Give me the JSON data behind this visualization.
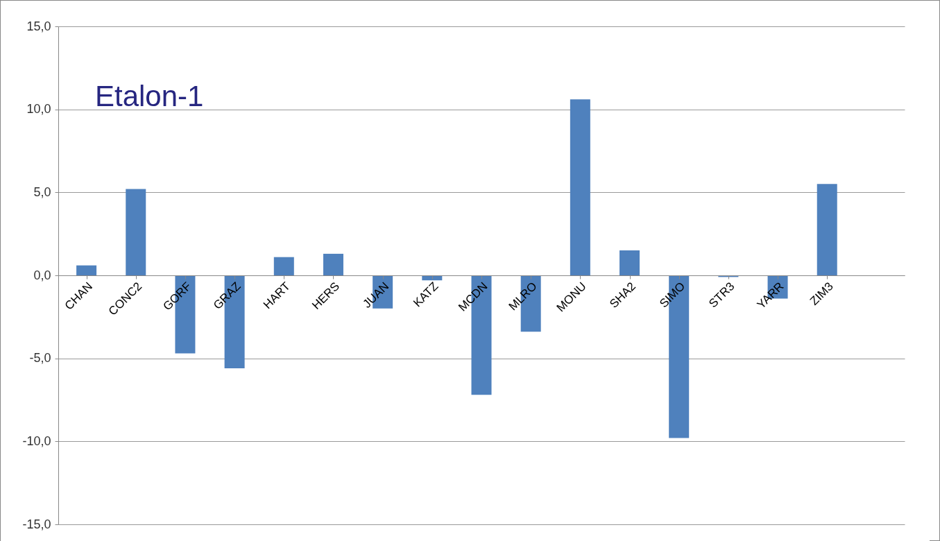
{
  "chart_data": {
    "type": "bar",
    "title": "Etalon-1",
    "categories": [
      "CHAN",
      "CONC2",
      "GORF",
      "GRAZ",
      "HART",
      "HERS",
      "JUAN",
      "KATZ",
      "MCDN",
      "MLRO",
      "MONU",
      "SHA2",
      "SIMO",
      "STR3",
      "YARR",
      "ZIM3"
    ],
    "values": [
      0.6,
      5.2,
      -4.7,
      -5.6,
      1.1,
      1.3,
      -2.0,
      -0.3,
      -7.2,
      -3.4,
      10.6,
      1.5,
      -9.8,
      -0.1,
      -1.4,
      5.5
    ],
    "color": "#4f81bd",
    "ylim": [
      -15,
      15
    ],
    "yticks": [
      {
        "value": -15,
        "label": "-15,0"
      },
      {
        "value": -10,
        "label": "-10,0"
      },
      {
        "value": -5,
        "label": "-5,0"
      },
      {
        "value": 0,
        "label": "0,0"
      },
      {
        "value": 5,
        "label": "5,0"
      },
      {
        "value": 10,
        "label": "10,0"
      },
      {
        "value": 15,
        "label": "15,0"
      }
    ],
    "grid": "y"
  }
}
